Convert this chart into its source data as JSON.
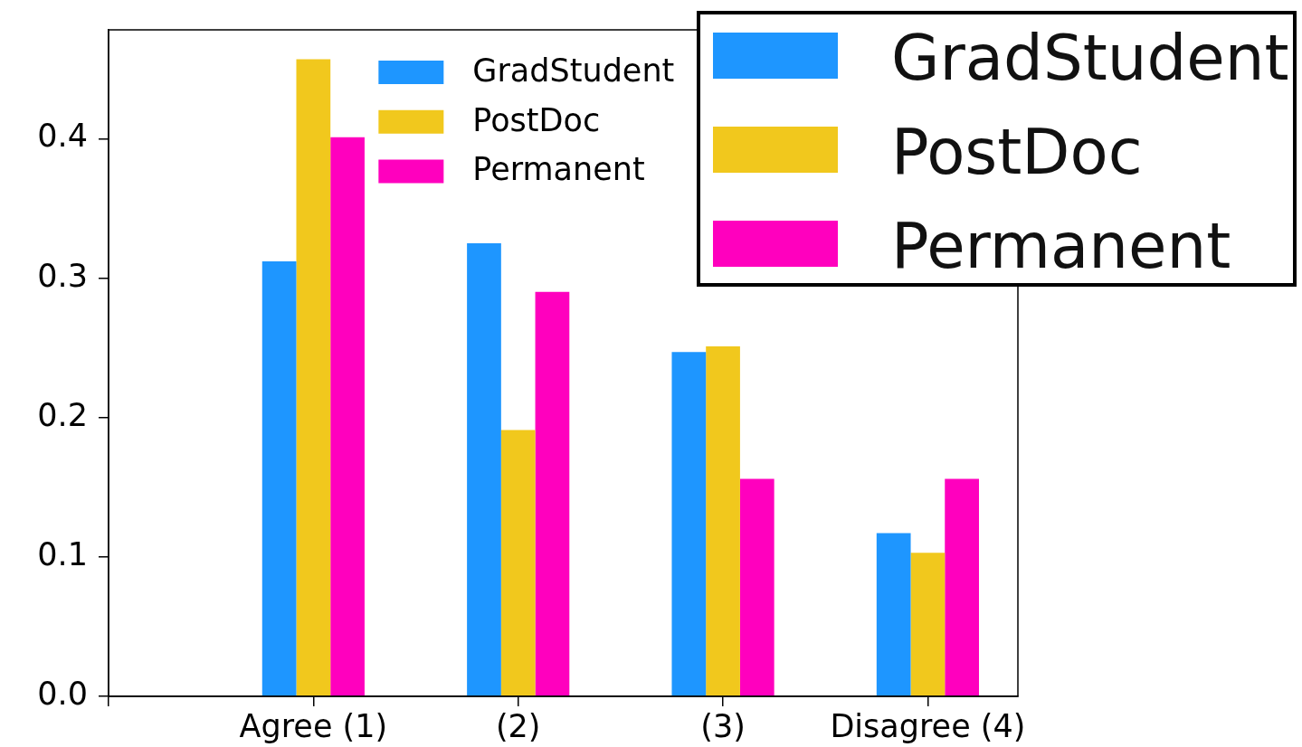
{
  "chart_data": {
    "type": "bar",
    "categories": [
      null,
      "Agree (1)",
      "(2)",
      "(3)",
      "Disagree (4)"
    ],
    "series": [
      {
        "name": "GradStudent",
        "color": "#1e96ff",
        "values": [
          null,
          0.312,
          0.325,
          0.247,
          0.117
        ]
      },
      {
        "name": "PostDoc",
        "color": "#f1c81d",
        "values": [
          null,
          0.457,
          0.191,
          0.251,
          0.103
        ]
      },
      {
        "name": "Permanent",
        "color": "#ff00be",
        "values": [
          null,
          0.401,
          0.29,
          0.156,
          0.156
        ]
      }
    ],
    "ylim": [
      0,
      0.478
    ],
    "yticks": [
      {
        "value": 0,
        "label": "0.0"
      },
      0.1,
      0.2,
      0.3,
      0.4
    ],
    "legend": "top"
  }
}
